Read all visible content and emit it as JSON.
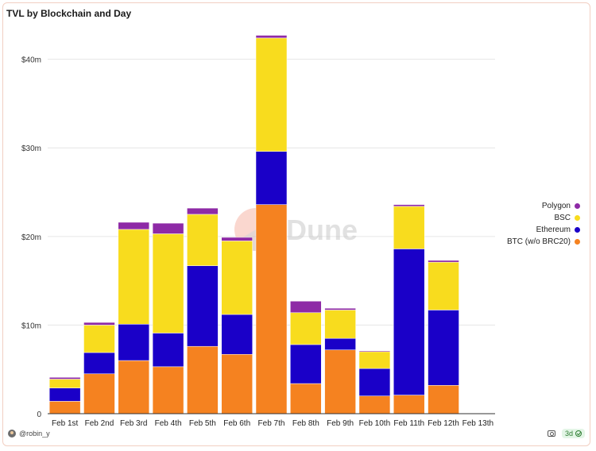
{
  "chart_data": {
    "type": "bar",
    "stacked": true,
    "title": "TVL by Blockchain and Day",
    "xlabel": "",
    "ylabel": "",
    "categories": [
      "Feb 1st",
      "Feb 2nd",
      "Feb 3rd",
      "Feb 4th",
      "Feb 5th",
      "Feb 6th",
      "Feb 7th",
      "Feb 8th",
      "Feb 9th",
      "Feb 10th",
      "Feb 11th",
      "Feb 12th",
      "Feb 13th"
    ],
    "ylim": [
      0,
      44000000
    ],
    "yticks": [
      0,
      10000000,
      20000000,
      30000000,
      40000000
    ],
    "ytick_labels": [
      "0",
      "$10m",
      "$20m",
      "$30m",
      "$40m"
    ],
    "grid": true,
    "legend_position": "right",
    "series": [
      {
        "name": "BTC (w/o BRC20)",
        "color": "#f58220",
        "values": [
          1400000,
          4500000,
          6000000,
          5300000,
          7600000,
          6700000,
          23600000,
          3400000,
          7200000,
          2000000,
          2100000,
          3200000,
          0
        ]
      },
      {
        "name": "Ethereum",
        "color": "#1a00c8",
        "values": [
          1500000,
          2400000,
          4100000,
          3800000,
          9100000,
          4500000,
          6000000,
          4400000,
          1300000,
          3100000,
          16500000,
          8500000,
          0
        ]
      },
      {
        "name": "BSC",
        "color": "#f8dc1e",
        "values": [
          1000000,
          3100000,
          10700000,
          11200000,
          5800000,
          8300000,
          12800000,
          3600000,
          3200000,
          1900000,
          4800000,
          5400000,
          0
        ]
      },
      {
        "name": "Polygon",
        "color": "#8e2aa6",
        "values": [
          200000,
          300000,
          800000,
          1200000,
          700000,
          400000,
          300000,
          1300000,
          200000,
          100000,
          200000,
          200000,
          0
        ]
      }
    ]
  },
  "legend_order": [
    "Polygon",
    "BSC",
    "Ethereum",
    "BTC (w/o BRC20)"
  ],
  "watermark": {
    "text": "Dune"
  },
  "footer": {
    "author": "@robin_y",
    "freshness": "3d"
  }
}
